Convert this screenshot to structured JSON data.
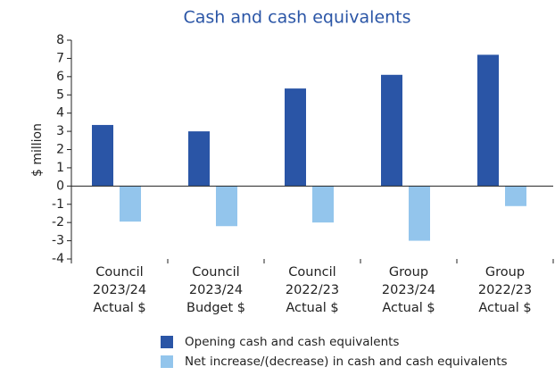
{
  "chart_data": {
    "type": "bar",
    "title": "Cash and cash equivalents",
    "y_label": "$ million",
    "categories": [
      [
        "Council",
        "2023/24",
        "Actual $"
      ],
      [
        "Council",
        "2023/24",
        "Budget $"
      ],
      [
        "Council",
        "2022/23",
        "Actual $"
      ],
      [
        "Group",
        "2023/24",
        "Actual $"
      ],
      [
        "Group",
        "2022/23",
        "Actual $"
      ]
    ],
    "series": [
      {
        "name": "Opening cash and cash equivalents",
        "color": "#2a55a6",
        "values": [
          3.35,
          3.0,
          5.35,
          6.1,
          7.2
        ]
      },
      {
        "name": "Net increase/(decrease) in cash and cash equivalents",
        "color": "#93c5ec",
        "values": [
          -1.95,
          -2.2,
          -2.0,
          -3.0,
          -1.1
        ]
      }
    ],
    "ylim": [
      -4,
      8
    ],
    "yticks": [
      -4,
      -3,
      -2,
      -1,
      0,
      1,
      2,
      3,
      4,
      5,
      6,
      7,
      8
    ],
    "grid": false
  }
}
